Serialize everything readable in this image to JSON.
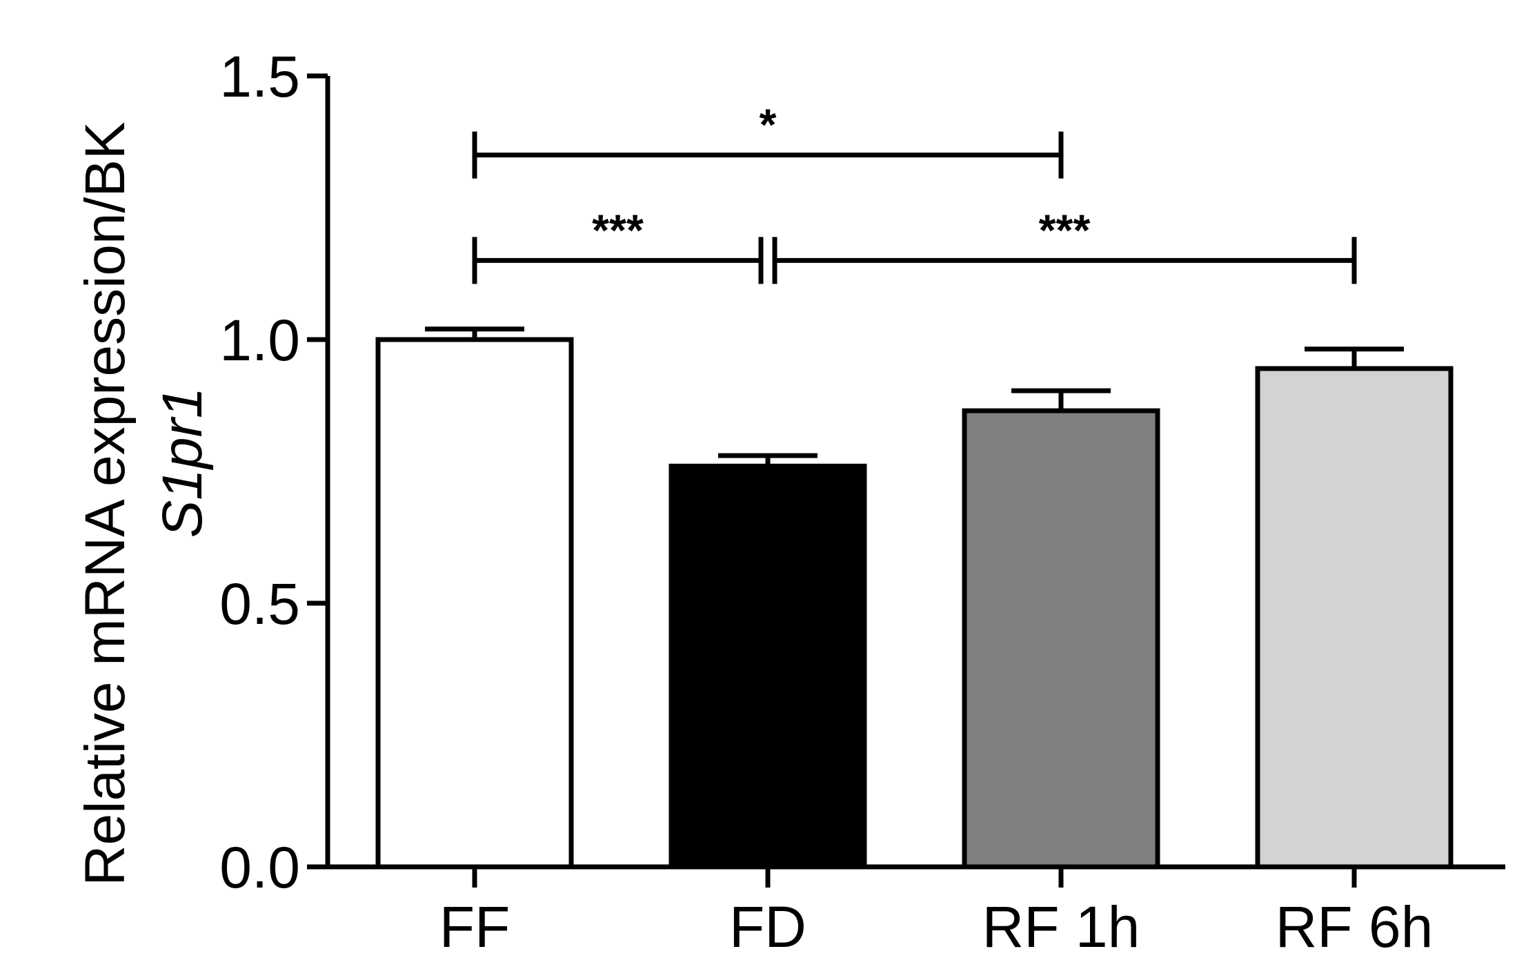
{
  "chart_data": {
    "type": "bar",
    "categories": [
      "FF",
      "FD",
      "RF 1h",
      "RF 6h"
    ],
    "values": [
      1.0,
      0.76,
      0.865,
      0.945
    ],
    "errors": [
      0.02,
      0.02,
      0.038,
      0.037
    ],
    "bar_colors": [
      "#ffffff",
      "#000000",
      "#808080",
      "#d3d3d3"
    ],
    "ylabel_line1": "Relative mRNA expression/BK",
    "ylabel_line2": "S1pr1",
    "ylim": [
      0,
      1.5
    ],
    "yticks": [
      "0.0",
      "0.5",
      "1.0",
      "1.5"
    ],
    "grid": false,
    "significance": [
      {
        "from": 0,
        "to": 2,
        "label": "*",
        "level": 1.35
      },
      {
        "from": 0,
        "to": 1,
        "label": "***",
        "level": 1.15
      },
      {
        "from": 1,
        "to": 3,
        "label": "***",
        "level": 1.15
      }
    ]
  }
}
